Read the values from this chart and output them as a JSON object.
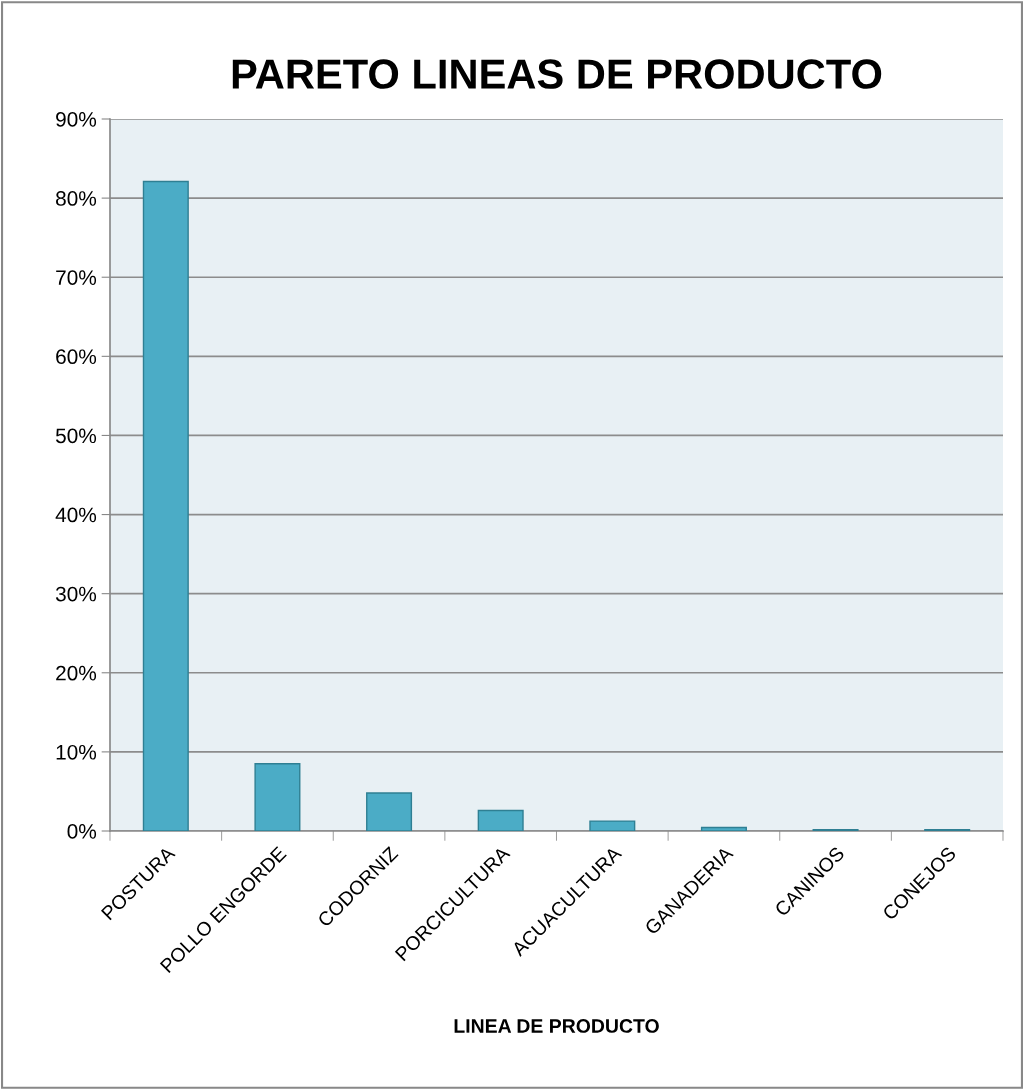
{
  "chart_data": {
    "type": "bar",
    "title": "PARETO LINEAS DE PRODUCTO",
    "xlabel": "LINEA DE PRODUCTO",
    "categories": [
      "POSTURA",
      "POLLO ENGORDE",
      "CODORNIZ",
      "PORCICULTURA",
      "ACUACULTURA",
      "GANADERIA",
      "CANINOS",
      "CONEJOS"
    ],
    "values": [
      82.1,
      8.5,
      4.8,
      2.6,
      1.25,
      0.45,
      0.15,
      0.15
    ],
    "color": "#4bacc6",
    "ylim": [
      0,
      90
    ],
    "yticks": [
      {
        "value": 0,
        "label": "0%"
      },
      {
        "value": 10,
        "label": "10%"
      },
      {
        "value": 20,
        "label": "20%"
      },
      {
        "value": 30,
        "label": "30%"
      },
      {
        "value": 40,
        "label": "40%"
      },
      {
        "value": 50,
        "label": "50%"
      },
      {
        "value": 60,
        "label": "60%"
      },
      {
        "value": 70,
        "label": "70%"
      },
      {
        "value": 80,
        "label": "80%"
      },
      {
        "value": 90,
        "label": "90%"
      }
    ],
    "grid": "y",
    "legend": false
  }
}
